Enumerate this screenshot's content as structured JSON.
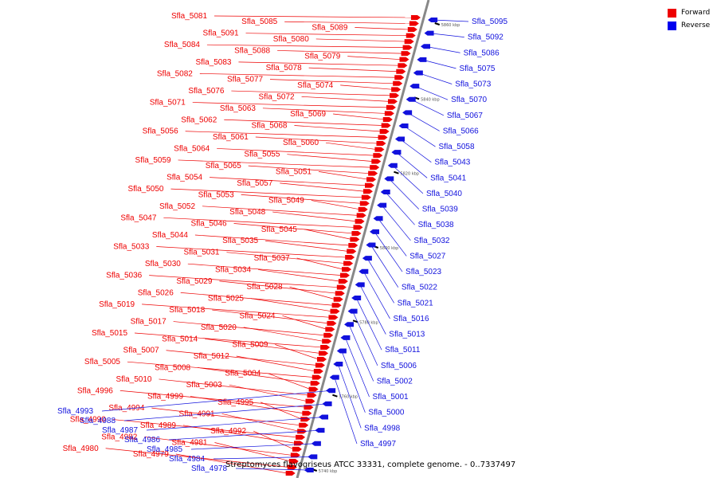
{
  "legend": [
    {
      "label": "Forward",
      "color": "#ee0000"
    },
    {
      "label": "Reverse",
      "color": "#0000ee"
    }
  ],
  "caption": "Streptomyces flavogriseus ATCC 33331, complete genome. - 0..7337497",
  "colors": {
    "forward": "#ee0000",
    "reverse": "#1111dd",
    "axis": "#888888",
    "ruler": "#000000"
  },
  "scale_labels": [
    "5860 kbp",
    "5840 kbp",
    "5820 kbp",
    "5800 kbp",
    "5780 kbp",
    "5760 kbp",
    "5740 kbp"
  ],
  "forward_labels": [
    "Sfla_5081",
    "Sfla_5085",
    "Sfla_5089",
    "Sfla_5091",
    "Sfla_5080",
    "Sfla_5084",
    "Sfla_5088",
    "Sfla_5079",
    "Sfla_5083",
    "Sfla_5078",
    "Sfla_5082",
    "Sfla_5077",
    "Sfla_5074",
    "Sfla_5076",
    "Sfla_5072",
    "Sfla_5071",
    "Sfla_5063",
    "Sfla_5069",
    "Sfla_5062",
    "Sfla_5068",
    "Sfla_5056",
    "Sfla_5061",
    "Sfla_5060",
    "Sfla_5064",
    "Sfla_5055",
    "Sfla_5059",
    "Sfla_5065",
    "Sfla_5051",
    "Sfla_5054",
    "Sfla_5057",
    "Sfla_5050",
    "Sfla_5053",
    "Sfla_5049",
    "Sfla_5052",
    "Sfla_5048",
    "Sfla_5047",
    "Sfla_5046",
    "Sfla_5045",
    "Sfla_5044",
    "Sfla_5035",
    "Sfla_5033",
    "Sfla_5031",
    "Sfla_5037",
    "Sfla_5030",
    "Sfla_5034",
    "Sfla_5036",
    "Sfla_5029",
    "Sfla_5028",
    "Sfla_5026",
    "Sfla_5025",
    "Sfla_5019",
    "Sfla_5018",
    "Sfla_5024",
    "Sfla_5017",
    "Sfla_5020",
    "Sfla_5015",
    "Sfla_5014",
    "Sfla_5009",
    "Sfla_5007",
    "Sfla_5012",
    "Sfla_5005",
    "Sfla_5008",
    "Sfla_5004",
    "Sfla_5010",
    "Sfla_5003",
    "Sfla_4996",
    "Sfla_4999",
    "Sfla_4995",
    "Sfla_4994",
    "Sfla_4991",
    "Sfla_4990",
    "Sfla_4989",
    "Sfla_4992",
    "Sfla_4982",
    "Sfla_4981",
    "Sfla_4980",
    "Sfla_4979"
  ],
  "reverse_labels": [
    "Sfla_5095",
    "Sfla_5092",
    "Sfla_5086",
    "Sfla_5075",
    "Sfla_5073",
    "Sfla_5070",
    "Sfla_5067",
    "Sfla_5066",
    "Sfla_5058",
    "Sfla_5043",
    "Sfla_5041",
    "Sfla_5040",
    "Sfla_5039",
    "Sfla_5038",
    "Sfla_5032",
    "Sfla_5027",
    "Sfla_5023",
    "Sfla_5022",
    "Sfla_5021",
    "Sfla_5016",
    "Sfla_5013",
    "Sfla_5011",
    "Sfla_5006",
    "Sfla_5002",
    "Sfla_5001",
    "Sfla_5000",
    "Sfla_4998",
    "Sfla_4997",
    "Sfla_4993",
    "Sfla_4988",
    "Sfla_4987",
    "Sfla_4986",
    "Sfla_4985",
    "Sfla_4984",
    "Sfla_4978"
  ]
}
